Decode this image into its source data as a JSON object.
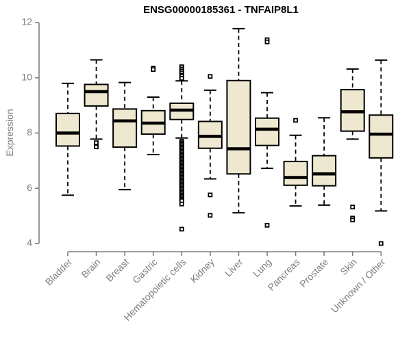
{
  "chart_data": {
    "type": "box",
    "title": "ENSG00000185361 - TNFAIP8L1",
    "ylabel": "Expression",
    "xlabel": "",
    "ylim": [
      4,
      12
    ],
    "yticks": [
      4,
      6,
      8,
      10,
      12
    ],
    "grid": false,
    "legend_position": "none",
    "categories": [
      "Bladder",
      "Brain",
      "Breast",
      "Gastric",
      "Hematopoietic cells",
      "Kidney",
      "Liver",
      "Lung",
      "Pancreas",
      "Prostate",
      "Skin",
      "Unknown / Other"
    ],
    "series": [
      {
        "category": "Bladder",
        "whisker_low": 5.75,
        "q1": 7.53,
        "median": 8.0,
        "q3": 8.71,
        "whisker_high": 9.8,
        "outliers": []
      },
      {
        "category": "Brain",
        "whisker_low": 7.78,
        "q1": 8.98,
        "median": 9.5,
        "q3": 9.76,
        "whisker_high": 10.65,
        "outliers": [
          7.65,
          7.5
        ]
      },
      {
        "category": "Breast",
        "whisker_low": 5.95,
        "q1": 7.49,
        "median": 8.44,
        "q3": 8.87,
        "whisker_high": 9.83,
        "outliers": []
      },
      {
        "category": "Gastric",
        "whisker_low": 7.22,
        "q1": 7.96,
        "median": 8.36,
        "q3": 8.81,
        "whisker_high": 9.3,
        "outliers": [
          10.35,
          10.3
        ]
      },
      {
        "category": "Hematopoietic cells",
        "whisker_low": 7.82,
        "q1": 8.49,
        "median": 8.83,
        "q3": 9.08,
        "whisker_high": 9.89,
        "outliers": [
          10.4,
          10.32,
          10.25,
          10.18,
          10.1,
          10.05,
          9.98,
          7.7,
          7.65,
          7.6,
          7.55,
          7.5,
          7.45,
          7.4,
          7.35,
          7.3,
          7.25,
          7.2,
          7.15,
          7.1,
          7.05,
          7.0,
          6.95,
          6.9,
          6.85,
          6.8,
          6.75,
          6.7,
          6.65,
          6.6,
          6.55,
          6.5,
          6.45,
          6.4,
          6.35,
          6.3,
          6.25,
          6.2,
          6.15,
          6.1,
          6.05,
          6.0,
          5.95,
          5.9,
          5.85,
          5.8,
          5.75,
          5.7,
          5.65,
          5.6,
          5.55,
          5.43,
          4.52
        ]
      },
      {
        "category": "Kidney",
        "whisker_low": 6.34,
        "q1": 7.45,
        "median": 7.88,
        "q3": 8.42,
        "whisker_high": 9.55,
        "outliers": [
          10.05,
          5.76,
          5.02
        ]
      },
      {
        "category": "Liver",
        "whisker_low": 5.11,
        "q1": 6.52,
        "median": 7.43,
        "q3": 9.9,
        "whisker_high": 11.78,
        "outliers": []
      },
      {
        "category": "Lung",
        "whisker_low": 6.72,
        "q1": 7.55,
        "median": 8.14,
        "q3": 8.54,
        "whisker_high": 9.46,
        "outliers": [
          11.38,
          11.3,
          4.66
        ]
      },
      {
        "category": "Pancreas",
        "whisker_low": 5.36,
        "q1": 6.11,
        "median": 6.39,
        "q3": 6.97,
        "whisker_high": 7.92,
        "outliers": [
          8.46
        ]
      },
      {
        "category": "Prostate",
        "whisker_low": 5.39,
        "q1": 6.09,
        "median": 6.52,
        "q3": 7.18,
        "whisker_high": 8.55,
        "outliers": []
      },
      {
        "category": "Skin",
        "whisker_low": 7.78,
        "q1": 8.07,
        "median": 8.77,
        "q3": 9.57,
        "whisker_high": 10.32,
        "outliers": [
          5.32,
          4.92,
          4.85
        ]
      },
      {
        "category": "Unknown / Other",
        "whisker_low": 5.18,
        "q1": 7.1,
        "median": 7.96,
        "q3": 8.65,
        "whisker_high": 10.64,
        "outliers": [
          4.0
        ]
      }
    ],
    "colors": {
      "box_fill": "#EEE8D0",
      "box_border": "#000000",
      "median": "#000000",
      "whisker": "#000000",
      "outlier_stroke": "#000000",
      "outlier_fill": "#FFFFFF",
      "axis": "#7E7E7E",
      "tick_label": "#7E7E7E",
      "title": "#000000",
      "background": "#FFFFFF"
    }
  }
}
